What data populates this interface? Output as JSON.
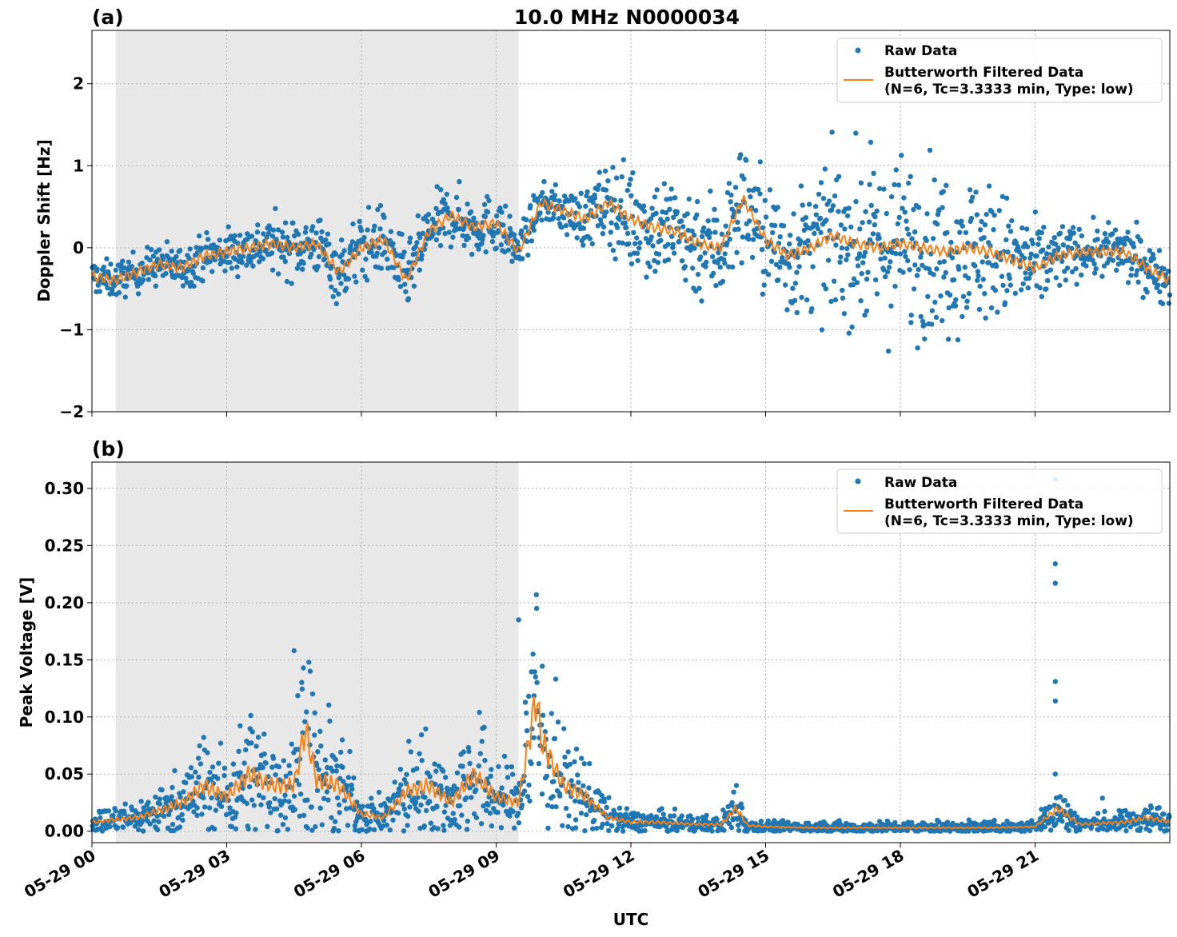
{
  "figure": {
    "title": "10.0 MHz N0000034",
    "xlabel": "UTC",
    "colors": {
      "raw": "#1f77b4",
      "filtered": "#ff7f0e",
      "shade": "#e8e8e8",
      "grid": "#b0b0b0"
    }
  },
  "chart_data": [
    {
      "type": "scatter",
      "panel_label": "(a)",
      "ylabel": "Doppler Shift [Hz]",
      "xlim_hours": [
        0,
        24
      ],
      "ylim": [
        -2.0,
        2.65
      ],
      "yticks": [
        -2,
        -1,
        0,
        1,
        2
      ],
      "ytick_labels": [
        "−2",
        "−1",
        "0",
        "1",
        "2"
      ],
      "x_tick_labels": [
        "05-29 00",
        "05-29 03",
        "05-29 06",
        "05-29 09",
        "05-29 12",
        "05-29 15",
        "05-29 18",
        "05-29 21"
      ],
      "x_tick_hours": [
        0,
        3,
        6,
        9,
        12,
        15,
        18,
        21
      ],
      "shaded_hours": [
        0.53,
        9.5
      ],
      "grid": true,
      "legend_placement": "upper right",
      "legend": [
        "Raw Data",
        "Butterworth Filtered Data",
        "(N=6, Tc=3.3333 min, Type: low)"
      ],
      "series": [
        {
          "name": "Butterworth Filtered Data",
          "kind": "line",
          "x_hours": [
            0.0,
            0.5,
            1.0,
            1.5,
            2.0,
            2.5,
            3.0,
            3.5,
            4.0,
            4.5,
            5.0,
            5.5,
            6.0,
            6.5,
            7.0,
            7.5,
            8.0,
            8.5,
            9.0,
            9.5,
            10.0,
            10.5,
            11.0,
            11.5,
            12.0,
            12.5,
            13.0,
            13.5,
            14.0,
            14.5,
            15.0,
            15.5,
            16.0,
            16.5,
            17.0,
            17.5,
            18.0,
            18.5,
            19.0,
            19.5,
            20.0,
            20.5,
            21.0,
            21.5,
            22.0,
            22.5,
            23.0,
            23.5,
            24.0
          ],
          "y": [
            -0.35,
            -0.4,
            -0.3,
            -0.2,
            -0.25,
            -0.1,
            -0.05,
            0.0,
            0.05,
            0.0,
            0.05,
            -0.3,
            0.0,
            0.1,
            -0.4,
            0.2,
            0.4,
            0.25,
            0.3,
            -0.05,
            0.55,
            0.45,
            0.35,
            0.55,
            0.35,
            0.25,
            0.2,
            0.05,
            0.0,
            0.6,
            0.1,
            -0.1,
            0.0,
            0.15,
            0.05,
            0.0,
            0.05,
            0.0,
            -0.05,
            0.0,
            -0.05,
            -0.15,
            -0.25,
            -0.1,
            -0.05,
            -0.05,
            -0.05,
            -0.25,
            -0.4
          ]
        },
        {
          "name": "Raw Data",
          "kind": "points",
          "center_from": "Butterworth Filtered Data",
          "spread_hours": [
            0,
            3,
            6,
            9,
            10,
            11,
            12,
            14,
            16,
            17,
            18,
            19,
            20,
            21,
            22,
            23,
            24
          ],
          "spread_y": [
            0.15,
            0.2,
            0.3,
            0.25,
            0.15,
            0.25,
            0.45,
            0.5,
            0.55,
            0.7,
            0.75,
            0.7,
            0.6,
            0.4,
            0.2,
            0.25,
            0.2
          ]
        }
      ]
    },
    {
      "type": "scatter",
      "panel_label": "(b)",
      "ylabel": "Peak Voltage [V]",
      "xlim_hours": [
        0,
        24
      ],
      "ylim": [
        -0.01,
        0.323
      ],
      "yticks": [
        0.0,
        0.05,
        0.1,
        0.15,
        0.2,
        0.25,
        0.3
      ],
      "ytick_labels": [
        "0.00",
        "0.05",
        "0.10",
        "0.15",
        "0.20",
        "0.25",
        "0.30"
      ],
      "x_tick_labels": [
        "05-29 00",
        "05-29 03",
        "05-29 06",
        "05-29 09",
        "05-29 12",
        "05-29 15",
        "05-29 18",
        "05-29 21"
      ],
      "x_tick_hours": [
        0,
        3,
        6,
        9,
        12,
        15,
        18,
        21
      ],
      "shaded_hours": [
        0.53,
        9.5
      ],
      "grid": true,
      "legend_placement": "upper right",
      "legend": [
        "Raw Data",
        "Butterworth Filtered Data",
        "(N=6, Tc=3.3333 min, Type: low)"
      ],
      "series": [
        {
          "name": "Butterworth Filtered Data",
          "kind": "line",
          "x_hours": [
            0.0,
            0.5,
            1.0,
            1.5,
            2.0,
            2.5,
            3.0,
            3.5,
            4.0,
            4.5,
            4.75,
            5.0,
            5.5,
            6.0,
            6.5,
            7.0,
            7.5,
            8.0,
            8.5,
            9.0,
            9.5,
            9.9,
            10.0,
            10.5,
            11.0,
            11.5,
            12.0,
            12.5,
            13.0,
            13.5,
            14.0,
            14.35,
            14.6,
            15.0,
            16.0,
            17.0,
            18.0,
            19.0,
            20.0,
            21.0,
            21.5,
            22.0,
            22.5,
            23.0,
            23.5,
            24.0
          ],
          "y": [
            0.008,
            0.01,
            0.012,
            0.018,
            0.025,
            0.04,
            0.03,
            0.05,
            0.04,
            0.04,
            0.09,
            0.045,
            0.04,
            0.015,
            0.012,
            0.035,
            0.04,
            0.025,
            0.05,
            0.03,
            0.025,
            0.12,
            0.08,
            0.04,
            0.03,
            0.012,
            0.008,
            0.008,
            0.007,
            0.006,
            0.006,
            0.02,
            0.005,
            0.004,
            0.003,
            0.003,
            0.003,
            0.003,
            0.003,
            0.004,
            0.02,
            0.006,
            0.007,
            0.008,
            0.012,
            0.008
          ]
        },
        {
          "name": "Raw Data",
          "kind": "points",
          "center_from": "Butterworth Filtered Data",
          "spread_fraction": 0.85,
          "outliers": [
            {
              "x_hour": 21.45,
              "y": 0.308
            },
            {
              "x_hour": 21.45,
              "y": 0.234
            },
            {
              "x_hour": 21.45,
              "y": 0.217
            },
            {
              "x_hour": 21.45,
              "y": 0.131
            },
            {
              "x_hour": 21.45,
              "y": 0.114
            },
            {
              "x_hour": 21.45,
              "y": 0.05
            },
            {
              "x_hour": 9.9,
              "y": 0.195
            },
            {
              "x_hour": 9.5,
              "y": 0.185
            },
            {
              "x_hour": 4.5,
              "y": 0.158
            },
            {
              "x_hour": 14.35,
              "y": 0.04
            },
            {
              "x_hour": 22.5,
              "y": 0.029
            }
          ]
        }
      ]
    }
  ]
}
